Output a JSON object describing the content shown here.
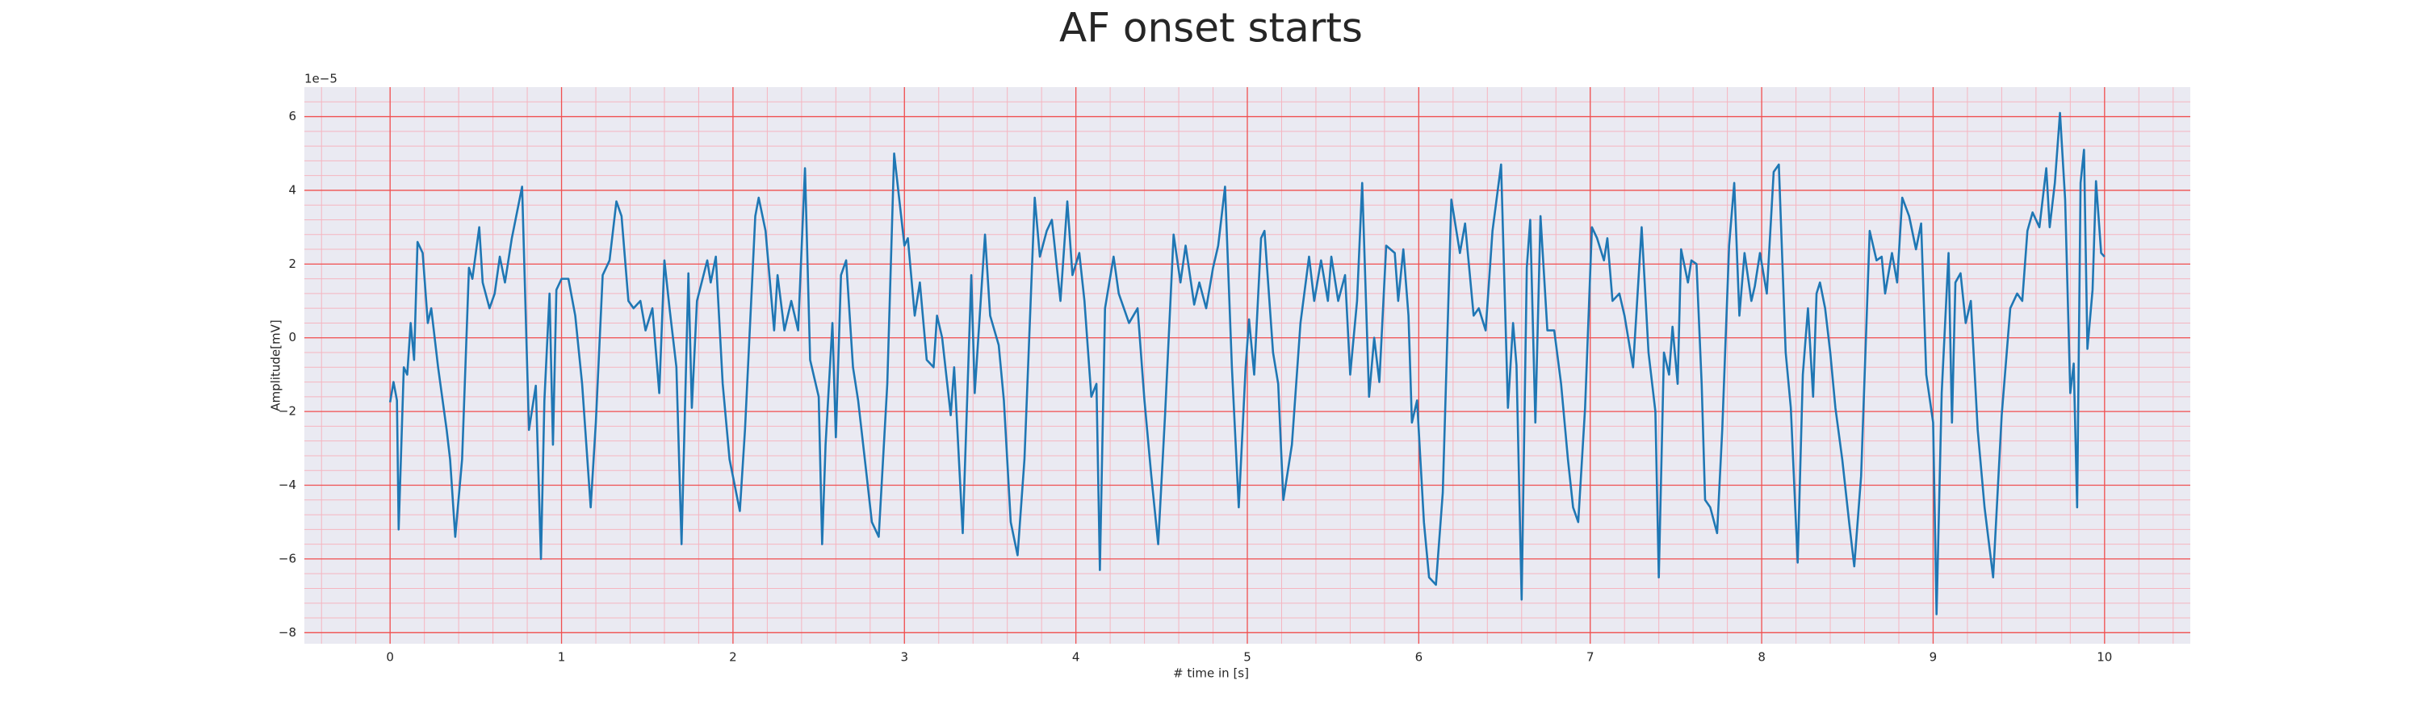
{
  "chart_data": {
    "type": "line",
    "title": "AF onset starts",
    "x_label": "# time in [s]",
    "y_label": "Amplitude[mV]",
    "y_offset_label": "1e−5",
    "xlim": [
      -0.5,
      10.5
    ],
    "xticks": [
      0,
      1,
      2,
      3,
      4,
      5,
      6,
      7,
      8,
      9,
      10
    ],
    "ylim": [
      -8.3,
      6.8
    ],
    "yticks": [
      {
        "value": -8,
        "label": "−8"
      },
      {
        "value": -6,
        "label": "−6"
      },
      {
        "value": -4,
        "label": "−4"
      },
      {
        "value": -2,
        "label": "−2"
      },
      0,
      2,
      4,
      6
    ],
    "grid": true,
    "grid_color": "#f05050",
    "minor_grid": true,
    "minor_grid_color": "#f5b5c0",
    "minor_divisions": 5,
    "x": [
      0,
      0.02,
      0.04,
      0.05,
      0.08,
      0.1,
      0.12,
      0.14,
      0.16,
      0.19,
      0.22,
      0.24,
      0.28,
      0.33,
      0.35,
      0.38,
      0.42,
      0.46,
      0.48,
      0.52,
      0.54,
      0.58,
      0.61,
      0.64,
      0.67,
      0.71,
      0.77,
      0.81,
      0.85,
      0.88,
      0.9,
      0.93,
      0.95,
      0.97,
      1.0,
      1.04,
      1.08,
      1.12,
      1.17,
      1.2,
      1.24,
      1.28,
      1.32,
      1.35,
      1.39,
      1.42,
      1.46,
      1.49,
      1.53,
      1.57,
      1.6,
      1.63,
      1.67,
      1.7,
      1.74,
      1.76,
      1.79,
      1.85,
      1.87,
      1.9,
      1.94,
      1.98,
      2.04,
      2.07,
      2.13,
      2.15,
      2.19,
      2.24,
      2.26,
      2.3,
      2.34,
      2.38,
      2.42,
      2.45,
      2.5,
      2.52,
      2.54,
      2.58,
      2.6,
      2.63,
      2.66,
      2.7,
      2.73,
      2.78,
      2.81,
      2.85,
      2.9,
      2.94,
      2.97,
      3.0,
      3.02,
      3.06,
      3.09,
      3.13,
      3.17,
      3.19,
      3.22,
      3.27,
      3.29,
      3.34,
      3.39,
      3.41,
      3.47,
      3.5,
      3.55,
      3.58,
      3.62,
      3.66,
      3.7,
      3.76,
      3.79,
      3.83,
      3.86,
      3.91,
      3.95,
      3.98,
      4.02,
      4.05,
      4.09,
      4.12,
      4.14,
      4.17,
      4.22,
      4.25,
      4.31,
      4.36,
      4.4,
      4.44,
      4.48,
      4.52,
      4.57,
      4.61,
      4.64,
      4.69,
      4.72,
      4.76,
      4.8,
      4.83,
      4.87,
      4.91,
      4.95,
      4.99,
      5.01,
      5.04,
      5.08,
      5.1,
      5.15,
      5.18,
      5.21,
      5.26,
      5.31,
      5.36,
      5.39,
      5.43,
      5.47,
      5.49,
      5.53,
      5.57,
      5.6,
      5.64,
      5.67,
      5.71,
      5.74,
      5.77,
      5.81,
      5.86,
      5.88,
      5.91,
      5.94,
      5.96,
      5.99,
      6.03,
      6.06,
      6.1,
      6.14,
      6.19,
      6.24,
      6.27,
      6.32,
      6.35,
      6.39,
      6.43,
      6.48,
      6.52,
      6.55,
      6.57,
      6.6,
      6.63,
      6.65,
      6.68,
      6.71,
      6.75,
      6.79,
      6.83,
      6.87,
      6.9,
      6.93,
      6.97,
      7.01,
      7.04,
      7.08,
      7.1,
      7.13,
      7.17,
      7.2,
      7.25,
      7.3,
      7.34,
      7.38,
      7.4,
      7.43,
      7.46,
      7.48,
      7.51,
      7.53,
      7.57,
      7.59,
      7.62,
      7.65,
      7.67,
      7.7,
      7.74,
      7.77,
      7.81,
      7.84,
      7.87,
      7.9,
      7.94,
      7.96,
      7.99,
      8.03,
      8.07,
      8.1,
      8.14,
      8.17,
      8.21,
      8.24,
      8.27,
      8.3,
      8.32,
      8.34,
      8.37,
      8.4,
      8.43,
      8.47,
      8.51,
      8.54,
      8.58,
      8.63,
      8.67,
      8.7,
      8.72,
      8.76,
      8.79,
      8.82,
      8.86,
      8.9,
      8.93,
      8.96,
      9.0,
      9.02,
      9.05,
      9.09,
      9.11,
      9.13,
      9.16,
      9.19,
      9.22,
      9.26,
      9.3,
      9.35,
      9.4,
      9.45,
      9.49,
      9.52,
      9.55,
      9.58,
      9.62,
      9.66,
      9.68,
      9.71,
      9.74,
      9.77,
      9.8,
      9.82,
      9.84,
      9.86,
      9.88,
      9.9,
      9.93,
      9.95,
      9.98,
      10.0
    ],
    "series": [
      {
        "color": "#1f77b4",
        "values": [
          -1.75,
          -1.2,
          -1.7,
          -5.2,
          -0.8,
          -1,
          0.4,
          -0.6,
          2.6,
          2.3,
          0.4,
          0.8,
          -0.8,
          -2.5,
          -3.3,
          -5.4,
          -3.3,
          1.9,
          1.6,
          3.0,
          1.5,
          0.8,
          1.2,
          2.2,
          1.5,
          2.7,
          4.1,
          -2.5,
          -1.3,
          -6.0,
          -1.7,
          1.2,
          -2.9,
          1.3,
          1.6,
          1.6,
          0.6,
          -1.25,
          -4.6,
          -2.3,
          1.7,
          2.1,
          3.7,
          3.3,
          1.0,
          0.8,
          1.0,
          0.2,
          0.8,
          -1.5,
          2.1,
          0.8,
          -0.8,
          -5.6,
          1.75,
          -1.9,
          1.0,
          2.1,
          1.5,
          2.2,
          -1.25,
          -3.3,
          -4.7,
          -2.5,
          3.3,
          3.8,
          2.9,
          0.2,
          1.7,
          0.2,
          1.0,
          0.2,
          4.6,
          -0.6,
          -1.6,
          -5.6,
          -2.9,
          0.4,
          -2.7,
          1.7,
          2.1,
          -0.8,
          -1.7,
          -3.75,
          -5.0,
          -5.4,
          -1.25,
          5.0,
          3.75,
          2.5,
          2.7,
          0.6,
          1.5,
          -0.6,
          -0.8,
          0.6,
          0,
          -2.1,
          -0.8,
          -5.3,
          1.7,
          -1.5,
          2.8,
          0.6,
          -0.2,
          -1.7,
          -5.0,
          -5.9,
          -3.3,
          3.8,
          2.2,
          2.9,
          3.2,
          1.0,
          3.7,
          1.7,
          2.3,
          1.0,
          -1.6,
          -1.25,
          -6.3,
          0.8,
          2.2,
          1.2,
          0.4,
          0.8,
          -1.7,
          -3.75,
          -5.6,
          -2.1,
          2.8,
          1.5,
          2.5,
          0.9,
          1.5,
          0.8,
          1.9,
          2.5,
          4.1,
          -0.8,
          -4.6,
          -0.8,
          0.5,
          -1.0,
          2.7,
          2.9,
          -0.4,
          -1.25,
          -4.4,
          -2.9,
          0.4,
          2.2,
          1.0,
          2.1,
          1.0,
          2.2,
          1.0,
          1.7,
          -1.0,
          1.0,
          4.2,
          -1.6,
          0,
          -1.2,
          2.5,
          2.3,
          1.0,
          2.4,
          0.6,
          -2.3,
          -1.7,
          -5.0,
          -6.5,
          -6.7,
          -4.2,
          3.75,
          2.3,
          3.1,
          0.6,
          0.8,
          0.2,
          2.9,
          4.7,
          -1.9,
          0.4,
          -0.75,
          -7.1,
          1.9,
          3.2,
          -2.3,
          3.3,
          0.2,
          0.2,
          -1.25,
          -3.3,
          -4.6,
          -5.0,
          -1.9,
          3.0,
          2.7,
          2.1,
          2.7,
          1.0,
          1.2,
          0.6,
          -0.8,
          3.0,
          -0.4,
          -2.0,
          -6.5,
          -0.4,
          -1.0,
          0.3,
          -1.25,
          2.4,
          1.5,
          2.1,
          2.0,
          -1.25,
          -4.4,
          -4.6,
          -5.3,
          -2.5,
          2.5,
          4.2,
          0.6,
          2.3,
          1.0,
          1.4,
          2.3,
          1.2,
          4.5,
          4.7,
          -0.4,
          -1.9,
          -6.1,
          -1.0,
          0.8,
          -1.6,
          1.2,
          1.5,
          0.8,
          -0.4,
          -1.9,
          -3.3,
          -5.0,
          -6.2,
          -3.75,
          2.9,
          2.1,
          2.2,
          1.2,
          2.3,
          1.5,
          3.8,
          3.3,
          2.4,
          3.1,
          -1.0,
          -2.3,
          -7.5,
          -1.5,
          2.3,
          -2.3,
          1.5,
          1.75,
          0.4,
          1.0,
          -2.5,
          -4.6,
          -6.5,
          -2.1,
          0.8,
          1.2,
          1.0,
          2.9,
          3.4,
          3.0,
          4.6,
          3.0,
          4.2,
          6.1,
          3.75,
          -1.5,
          -0.7,
          -4.6,
          4.2,
          5.1,
          -0.3,
          1.3,
          4.25,
          2.3,
          2.2
        ]
      }
    ]
  }
}
